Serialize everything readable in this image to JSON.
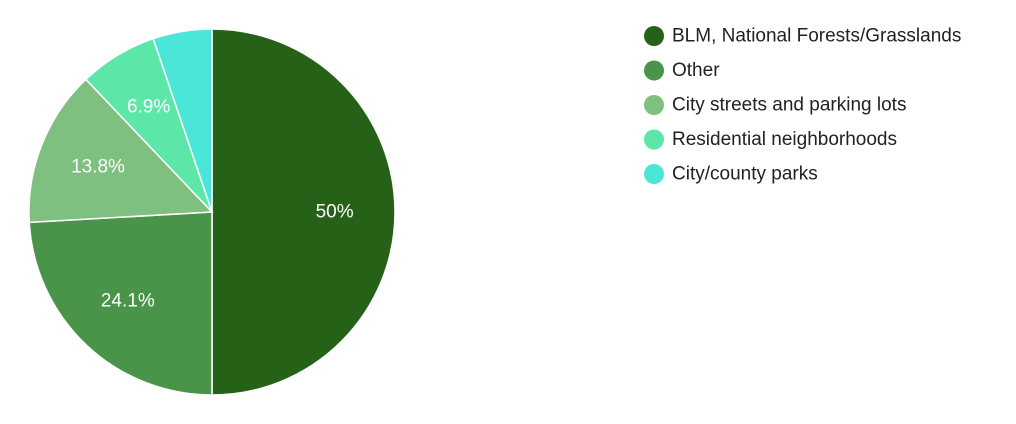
{
  "chart_data": {
    "type": "pie",
    "legend_position": "right",
    "slices": [
      {
        "label": "BLM, National Forests/Grasslands",
        "value": 50,
        "value_label": "50%",
        "color": "#266118"
      },
      {
        "label": "Other",
        "value": 24.1,
        "value_label": "24.1%",
        "color": "#4a944a"
      },
      {
        "label": "City streets and parking lots",
        "value": 13.8,
        "value_label": "13.8%",
        "color": "#7fbf7f"
      },
      {
        "label": "Residential neighborhoods",
        "value": 6.9,
        "value_label": "6.9%",
        "color": "#5ce6a8"
      },
      {
        "label": "City/county parks",
        "value": 5.2,
        "value_label": "",
        "color": "#4ae6d8"
      }
    ]
  }
}
